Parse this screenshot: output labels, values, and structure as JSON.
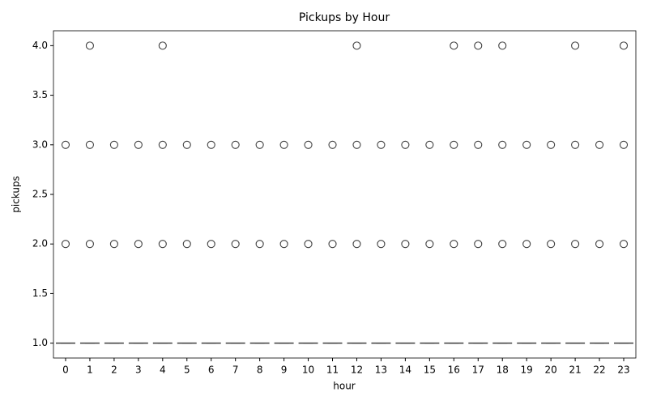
{
  "chart_data": {
    "type": "box",
    "title": "Pickups by Hour",
    "xlabel": "hour",
    "ylabel": "pickups",
    "categories": [
      0,
      1,
      2,
      3,
      4,
      5,
      6,
      7,
      8,
      9,
      10,
      11,
      12,
      13,
      14,
      15,
      16,
      17,
      18,
      19,
      20,
      21,
      22,
      23
    ],
    "color": "#4c72b0",
    "edge_color": "#3f3f3f",
    "boxes": [
      {
        "min": 1,
        "q1": 1,
        "median": 1,
        "q3": 1,
        "max": 1,
        "outliers": [
          2,
          3
        ]
      },
      {
        "min": 1,
        "q1": 1,
        "median": 1,
        "q3": 1,
        "max": 1,
        "outliers": [
          2,
          3,
          4
        ]
      },
      {
        "min": 1,
        "q1": 1,
        "median": 1,
        "q3": 1,
        "max": 1,
        "outliers": [
          2,
          3
        ]
      },
      {
        "min": 1,
        "q1": 1,
        "median": 1,
        "q3": 1,
        "max": 1,
        "outliers": [
          2,
          3
        ]
      },
      {
        "min": 1,
        "q1": 1,
        "median": 1,
        "q3": 1,
        "max": 1,
        "outliers": [
          2,
          3,
          4
        ]
      },
      {
        "min": 1,
        "q1": 1,
        "median": 1,
        "q3": 1,
        "max": 1,
        "outliers": [
          2,
          3
        ]
      },
      {
        "min": 1,
        "q1": 1,
        "median": 1,
        "q3": 1,
        "max": 1,
        "outliers": [
          2,
          3
        ]
      },
      {
        "min": 1,
        "q1": 1,
        "median": 1,
        "q3": 1,
        "max": 1,
        "outliers": [
          2,
          3
        ]
      },
      {
        "min": 1,
        "q1": 1,
        "median": 1,
        "q3": 1,
        "max": 1,
        "outliers": [
          2,
          3
        ]
      },
      {
        "min": 1,
        "q1": 1,
        "median": 1,
        "q3": 1,
        "max": 1,
        "outliers": [
          2,
          3
        ]
      },
      {
        "min": 1,
        "q1": 1,
        "median": 1,
        "q3": 1,
        "max": 1,
        "outliers": [
          2,
          3
        ]
      },
      {
        "min": 1,
        "q1": 1,
        "median": 1,
        "q3": 1,
        "max": 1,
        "outliers": [
          2,
          3
        ]
      },
      {
        "min": 1,
        "q1": 1,
        "median": 1,
        "q3": 1,
        "max": 1,
        "outliers": [
          2,
          3,
          4
        ]
      },
      {
        "min": 1,
        "q1": 1,
        "median": 1,
        "q3": 1,
        "max": 1,
        "outliers": [
          2,
          3
        ]
      },
      {
        "min": 1,
        "q1": 1,
        "median": 1,
        "q3": 1,
        "max": 1,
        "outliers": [
          2,
          3
        ]
      },
      {
        "min": 1,
        "q1": 1,
        "median": 1,
        "q3": 1,
        "max": 1,
        "outliers": [
          2,
          3
        ]
      },
      {
        "min": 1,
        "q1": 1,
        "median": 1,
        "q3": 1,
        "max": 1,
        "outliers": [
          2,
          3,
          4
        ]
      },
      {
        "min": 1,
        "q1": 1,
        "median": 1,
        "q3": 1,
        "max": 1,
        "outliers": [
          2,
          3,
          4
        ]
      },
      {
        "min": 1,
        "q1": 1,
        "median": 1,
        "q3": 1,
        "max": 1,
        "outliers": [
          2,
          3,
          4
        ]
      },
      {
        "min": 1,
        "q1": 1,
        "median": 1,
        "q3": 1,
        "max": 1,
        "outliers": [
          2,
          3
        ]
      },
      {
        "min": 1,
        "q1": 1,
        "median": 1,
        "q3": 1,
        "max": 1,
        "outliers": [
          2,
          3
        ]
      },
      {
        "min": 1,
        "q1": 1,
        "median": 1,
        "q3": 1,
        "max": 1,
        "outliers": [
          2,
          3,
          4
        ]
      },
      {
        "min": 1,
        "q1": 1,
        "median": 1,
        "q3": 1,
        "max": 1,
        "outliers": [
          2,
          3
        ]
      },
      {
        "min": 1,
        "q1": 1,
        "median": 1,
        "q3": 1,
        "max": 1,
        "outliers": [
          2,
          3,
          4
        ]
      }
    ],
    "ylim": [
      0.85,
      4.15
    ],
    "yticks": [
      {
        "value": 1,
        "label": "1.0"
      },
      1.5,
      {
        "value": 2,
        "label": "2.0"
      },
      2.5,
      {
        "value": 3,
        "label": "3.0"
      },
      3.5,
      {
        "value": 4,
        "label": "4.0"
      }
    ],
    "grid": false
  }
}
